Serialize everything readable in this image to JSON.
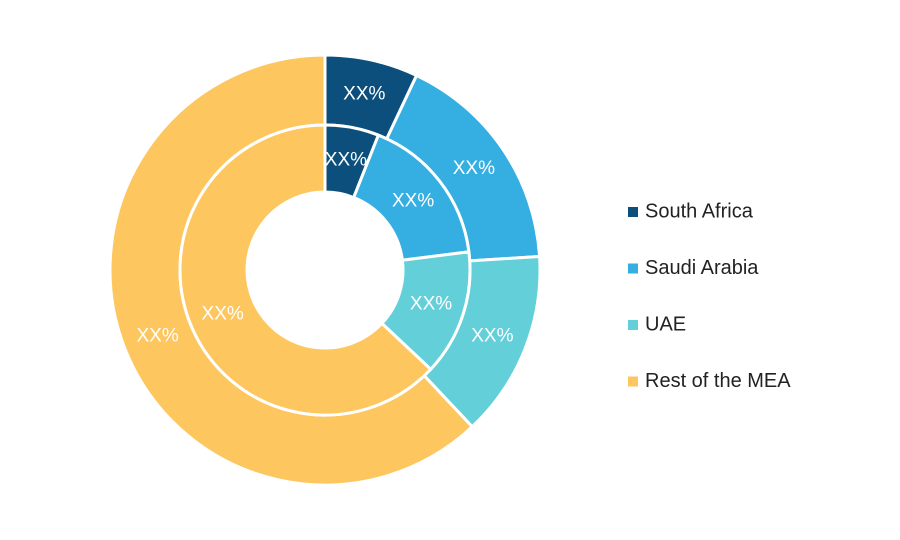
{
  "chart_data": {
    "type": "nested-donut",
    "categories": [
      "South Africa",
      "Saudi Arabia",
      "UAE",
      "Rest of the MEA"
    ],
    "colors": [
      "#0d4f7c",
      "#35aee2",
      "#62cfd9",
      "#fdc65f"
    ],
    "series": [
      {
        "values": [
          7,
          17,
          14,
          62
        ],
        "value_labels": [
          "XX%",
          "XX%",
          "XX%",
          "XX%"
        ]
      },
      {
        "values": [
          6,
          17,
          14,
          63
        ],
        "value_labels": [
          "XX%",
          "XX%",
          "XX%",
          "XX%"
        ]
      }
    ]
  }
}
